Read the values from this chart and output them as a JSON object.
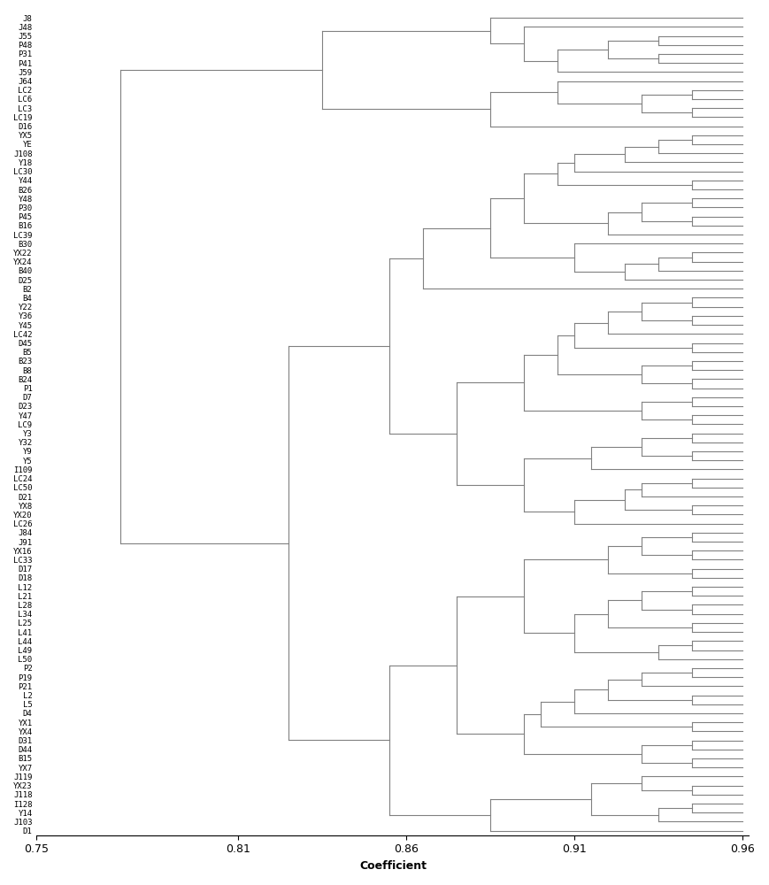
{
  "labels": [
    "J8",
    "J48",
    "J55",
    "P48",
    "P31",
    "P41",
    "J59",
    "J64",
    "LC2",
    "LC6",
    "LC3",
    "LC19",
    "D16",
    "YX5",
    "YE",
    "J108",
    "Y18",
    "LC30",
    "Y44",
    "B26",
    "Y48",
    "P30",
    "P45",
    "B16",
    "LC39",
    "B30",
    "YX22",
    "YX24",
    "B40",
    "D25",
    "B2",
    "B4",
    "Y22",
    "Y36",
    "Y45",
    "LC42",
    "D45",
    "B5",
    "B23",
    "B8",
    "B24",
    "P1",
    "D7",
    "D23",
    "Y47",
    "LC9",
    "Y3",
    "Y32",
    "Y9",
    "Y5",
    "I109",
    "LC24",
    "LC50",
    "D21",
    "YX8",
    "YX20",
    "LC26",
    "J84",
    "J91",
    "YX16",
    "LC33",
    "D17",
    "D18",
    "L12",
    "L21",
    "L28",
    "L34",
    "L25",
    "L41",
    "L44",
    "L49",
    "L50",
    "P2",
    "P19",
    "P21",
    "L2",
    "L5",
    "D4",
    "YX1",
    "YX4",
    "D31",
    "D44",
    "B15",
    "YX7",
    "J119",
    "YX23",
    "J118",
    "I128",
    "Y14",
    "J103",
    "D1"
  ],
  "xlabel": "Coefficient",
  "line_color": "#808080",
  "xlim_left": 0.75,
  "xlim_right": 0.96,
  "xticks": [
    0.75,
    0.81,
    0.86,
    0.91,
    0.96
  ],
  "xtick_labels": [
    "0.75",
    "0.81",
    "0.86",
    "0.91",
    "0.96"
  ],
  "figsize": [
    8.69,
    10.0
  ],
  "dpi": 100,
  "leaf_font_size": 6.5,
  "label_font_size": 9,
  "background_color": "#ffffff"
}
